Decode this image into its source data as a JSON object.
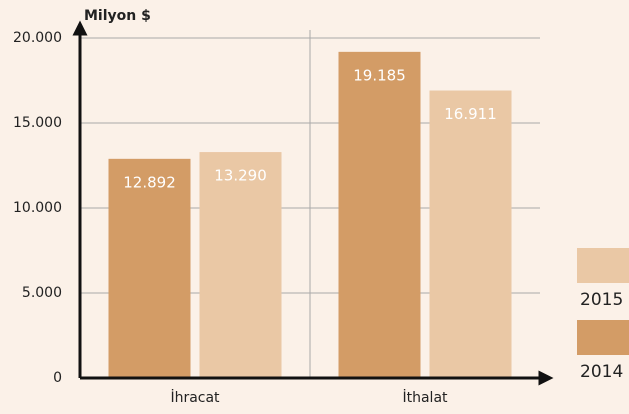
{
  "chart_data": {
    "type": "bar",
    "y_label": "Milyon $",
    "categories": [
      "İhracat",
      "İthalat"
    ],
    "series": [
      {
        "name": "2014",
        "color": "#d39c66",
        "values": [
          12892,
          19185
        ],
        "value_labels": [
          "12.892",
          "19.185"
        ]
      },
      {
        "name": "2015",
        "color": "#eac8a5",
        "values": [
          13290,
          16911
        ],
        "value_labels": [
          "13.290",
          "16.911"
        ]
      }
    ],
    "ylim": [
      0,
      20000
    ],
    "yticks": [
      {
        "value": 0,
        "label": "0"
      },
      {
        "value": 5000,
        "label": "5.000"
      },
      {
        "value": 10000,
        "label": "10.000"
      },
      {
        "value": 15000,
        "label": "15.000"
      },
      {
        "value": 20000,
        "label": "20.000"
      }
    ],
    "grid": true,
    "legend": "right"
  }
}
